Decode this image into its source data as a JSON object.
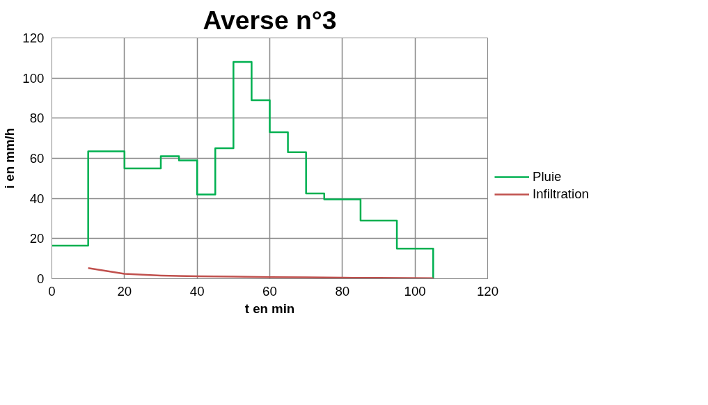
{
  "chart_data": {
    "type": "line",
    "title": "Averse n°3",
    "xlabel": "t en min",
    "ylabel": "i en mm/h",
    "xlim": [
      0,
      120
    ],
    "xticks": [
      0,
      20,
      40,
      60,
      80,
      100,
      120
    ],
    "ylim": [
      0,
      120
    ],
    "yticks": [
      0,
      20,
      40,
      60,
      80,
      100,
      120
    ],
    "grid": true,
    "legend": "right",
    "marker": "none",
    "line_style": "solid",
    "series": [
      {
        "name": "Pluie",
        "type": "step",
        "color": "#00b050",
        "x": [
          0,
          10,
          20,
          30,
          35,
          40,
          45,
          50,
          55,
          60,
          65,
          70,
          75,
          85,
          95,
          105
        ],
        "values": [
          16.5,
          63.5,
          55,
          61,
          59,
          42,
          65,
          108,
          89,
          73,
          63,
          42.5,
          39.5,
          29,
          15,
          0
        ]
      },
      {
        "name": "Infiltration",
        "color": "#c0504d",
        "x": [
          10,
          20,
          30,
          40,
          50,
          60,
          70,
          80,
          90,
          105
        ],
        "values": [
          5.3,
          2.4,
          1.6,
          1.2,
          1.0,
          0.8,
          0.7,
          0.5,
          0.4,
          0.3
        ]
      }
    ]
  }
}
